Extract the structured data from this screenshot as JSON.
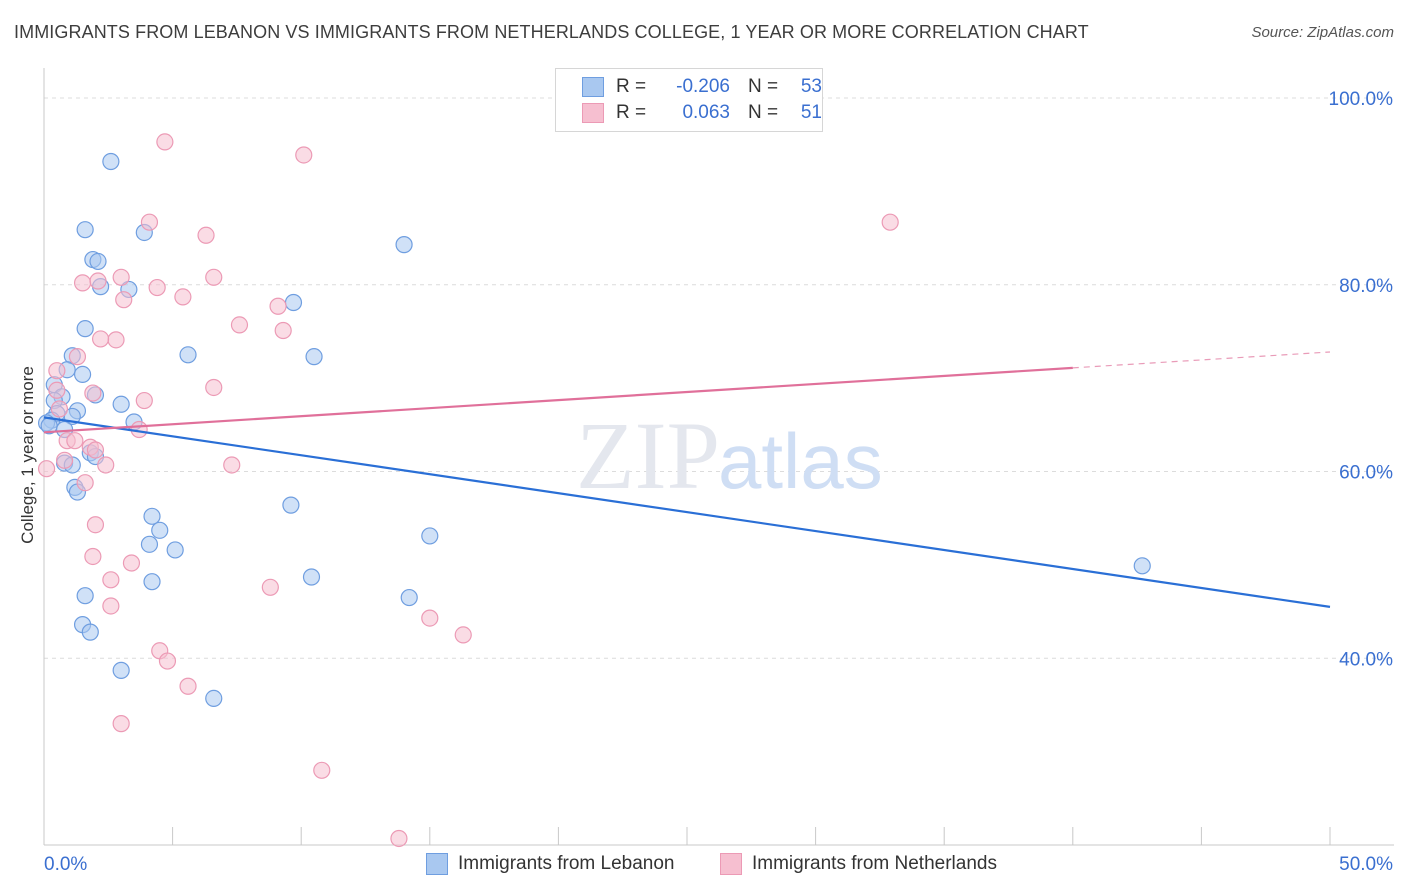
{
  "title": "IMMIGRANTS FROM LEBANON VS IMMIGRANTS FROM NETHERLANDS COLLEGE, 1 YEAR OR MORE CORRELATION CHART",
  "source": "Source: ZipAtlas.com",
  "watermark": {
    "zip": "ZIP",
    "atlas": "atlas"
  },
  "legend": {
    "rows": [
      {
        "r_label": "R =",
        "r_value": "-0.206",
        "n_label": "N =",
        "n_value": "53"
      },
      {
        "r_label": "R =",
        "r_value": "0.063",
        "n_label": "N =",
        "n_value": "51"
      }
    ]
  },
  "bottom_legend": {
    "lebanon": "Immigrants from Lebanon",
    "netherlands": "Immigrants from Netherlands"
  },
  "chart_data": {
    "type": "scatter",
    "title": "IMMIGRANTS FROM LEBANON VS IMMIGRANTS FROM NETHERLANDS COLLEGE, 1 YEAR OR MORE CORRELATION CHART",
    "xlabel": "",
    "ylabel": "College, 1 year or more",
    "xlim": [
      0,
      50
    ],
    "ylim": [
      20,
      103
    ],
    "x_tick_labels": [
      "0.0%",
      "50.0%"
    ],
    "y_ticks": [
      {
        "value": 100,
        "label": "100.0%"
      },
      {
        "value": 80,
        "label": "80.0%"
      },
      {
        "value": 60,
        "label": "60.0%"
      },
      {
        "value": 40,
        "label": "40.0%"
      }
    ],
    "colors": {
      "lebanon_fill": "#a9c8f0",
      "lebanon_stroke": "#6f9ee0",
      "lebanon_line": "#2a6fd6",
      "netherlands_fill": "#f6bfd0",
      "netherlands_stroke": "#ec9ab5",
      "netherlands_line": "#e0709a",
      "axis_text": "#3a6fd0"
    },
    "series": [
      {
        "name": "Immigrants from Lebanon",
        "trend": {
          "x0": 0,
          "y0": 65.8,
          "x1": 50,
          "y1": 45.5
        },
        "points": [
          [
            2.6,
            93.2
          ],
          [
            1.6,
            85.9
          ],
          [
            3.9,
            85.6
          ],
          [
            14.0,
            84.3
          ],
          [
            1.9,
            82.7
          ],
          [
            2.1,
            82.5
          ],
          [
            2.2,
            79.8
          ],
          [
            3.3,
            79.5
          ],
          [
            9.7,
            78.1
          ],
          [
            1.6,
            75.3
          ],
          [
            5.6,
            72.5
          ],
          [
            10.5,
            72.3
          ],
          [
            1.1,
            72.4
          ],
          [
            0.9,
            70.9
          ],
          [
            1.5,
            70.4
          ],
          [
            0.4,
            69.3
          ],
          [
            2.0,
            68.2
          ],
          [
            0.7,
            68.0
          ],
          [
            0.4,
            67.6
          ],
          [
            3.0,
            67.2
          ],
          [
            1.3,
            66.5
          ],
          [
            0.5,
            66.2
          ],
          [
            1.1,
            65.9
          ],
          [
            0.3,
            65.5
          ],
          [
            0.1,
            65.2
          ],
          [
            0.2,
            64.9
          ],
          [
            3.5,
            65.3
          ],
          [
            0.8,
            64.5
          ],
          [
            1.8,
            62.0
          ],
          [
            2.0,
            61.6
          ],
          [
            0.8,
            60.9
          ],
          [
            1.1,
            60.7
          ],
          [
            1.2,
            58.3
          ],
          [
            1.3,
            57.8
          ],
          [
            9.6,
            56.4
          ],
          [
            4.2,
            55.2
          ],
          [
            4.5,
            53.7
          ],
          [
            15.0,
            53.1
          ],
          [
            4.1,
            52.2
          ],
          [
            5.1,
            51.6
          ],
          [
            10.4,
            48.7
          ],
          [
            4.2,
            48.2
          ],
          [
            1.6,
            46.7
          ],
          [
            14.2,
            46.5
          ],
          [
            1.5,
            43.6
          ],
          [
            1.8,
            42.8
          ],
          [
            3.0,
            38.7
          ],
          [
            6.6,
            35.7
          ],
          [
            42.7,
            49.9
          ]
        ]
      },
      {
        "name": "Immigrants from Netherlands",
        "trend": {
          "x0": 0,
          "y0": 64.2,
          "x1": 40,
          "y1": 71.1,
          "dashed_to_x": 50,
          "dashed_to_y": 72.8
        },
        "points": [
          [
            4.7,
            95.3
          ],
          [
            10.1,
            93.9
          ],
          [
            32.9,
            86.7
          ],
          [
            4.1,
            86.7
          ],
          [
            6.3,
            85.3
          ],
          [
            3.0,
            80.8
          ],
          [
            1.5,
            80.2
          ],
          [
            2.1,
            80.4
          ],
          [
            6.6,
            80.8
          ],
          [
            4.4,
            79.7
          ],
          [
            5.4,
            78.7
          ],
          [
            3.1,
            78.4
          ],
          [
            9.1,
            77.7
          ],
          [
            7.6,
            75.7
          ],
          [
            9.3,
            75.1
          ],
          [
            2.8,
            74.1
          ],
          [
            2.2,
            74.2
          ],
          [
            1.3,
            72.3
          ],
          [
            0.5,
            70.8
          ],
          [
            6.6,
            69.0
          ],
          [
            0.5,
            68.7
          ],
          [
            1.9,
            68.4
          ],
          [
            3.9,
            67.6
          ],
          [
            0.6,
            66.7
          ],
          [
            3.7,
            64.5
          ],
          [
            0.9,
            63.3
          ],
          [
            1.2,
            63.3
          ],
          [
            1.8,
            62.6
          ],
          [
            2.0,
            62.3
          ],
          [
            7.3,
            60.7
          ],
          [
            2.4,
            60.7
          ],
          [
            0.8,
            61.2
          ],
          [
            0.1,
            60.3
          ],
          [
            1.6,
            58.8
          ],
          [
            2.0,
            54.3
          ],
          [
            1.9,
            50.9
          ],
          [
            3.4,
            50.2
          ],
          [
            2.6,
            48.4
          ],
          [
            8.8,
            47.6
          ],
          [
            2.6,
            45.6
          ],
          [
            15.0,
            44.3
          ],
          [
            16.3,
            42.5
          ],
          [
            4.5,
            40.8
          ],
          [
            4.8,
            39.7
          ],
          [
            5.6,
            37.0
          ],
          [
            3.0,
            33.0
          ],
          [
            10.8,
            28.0
          ],
          [
            13.8,
            20.7
          ]
        ]
      }
    ]
  }
}
